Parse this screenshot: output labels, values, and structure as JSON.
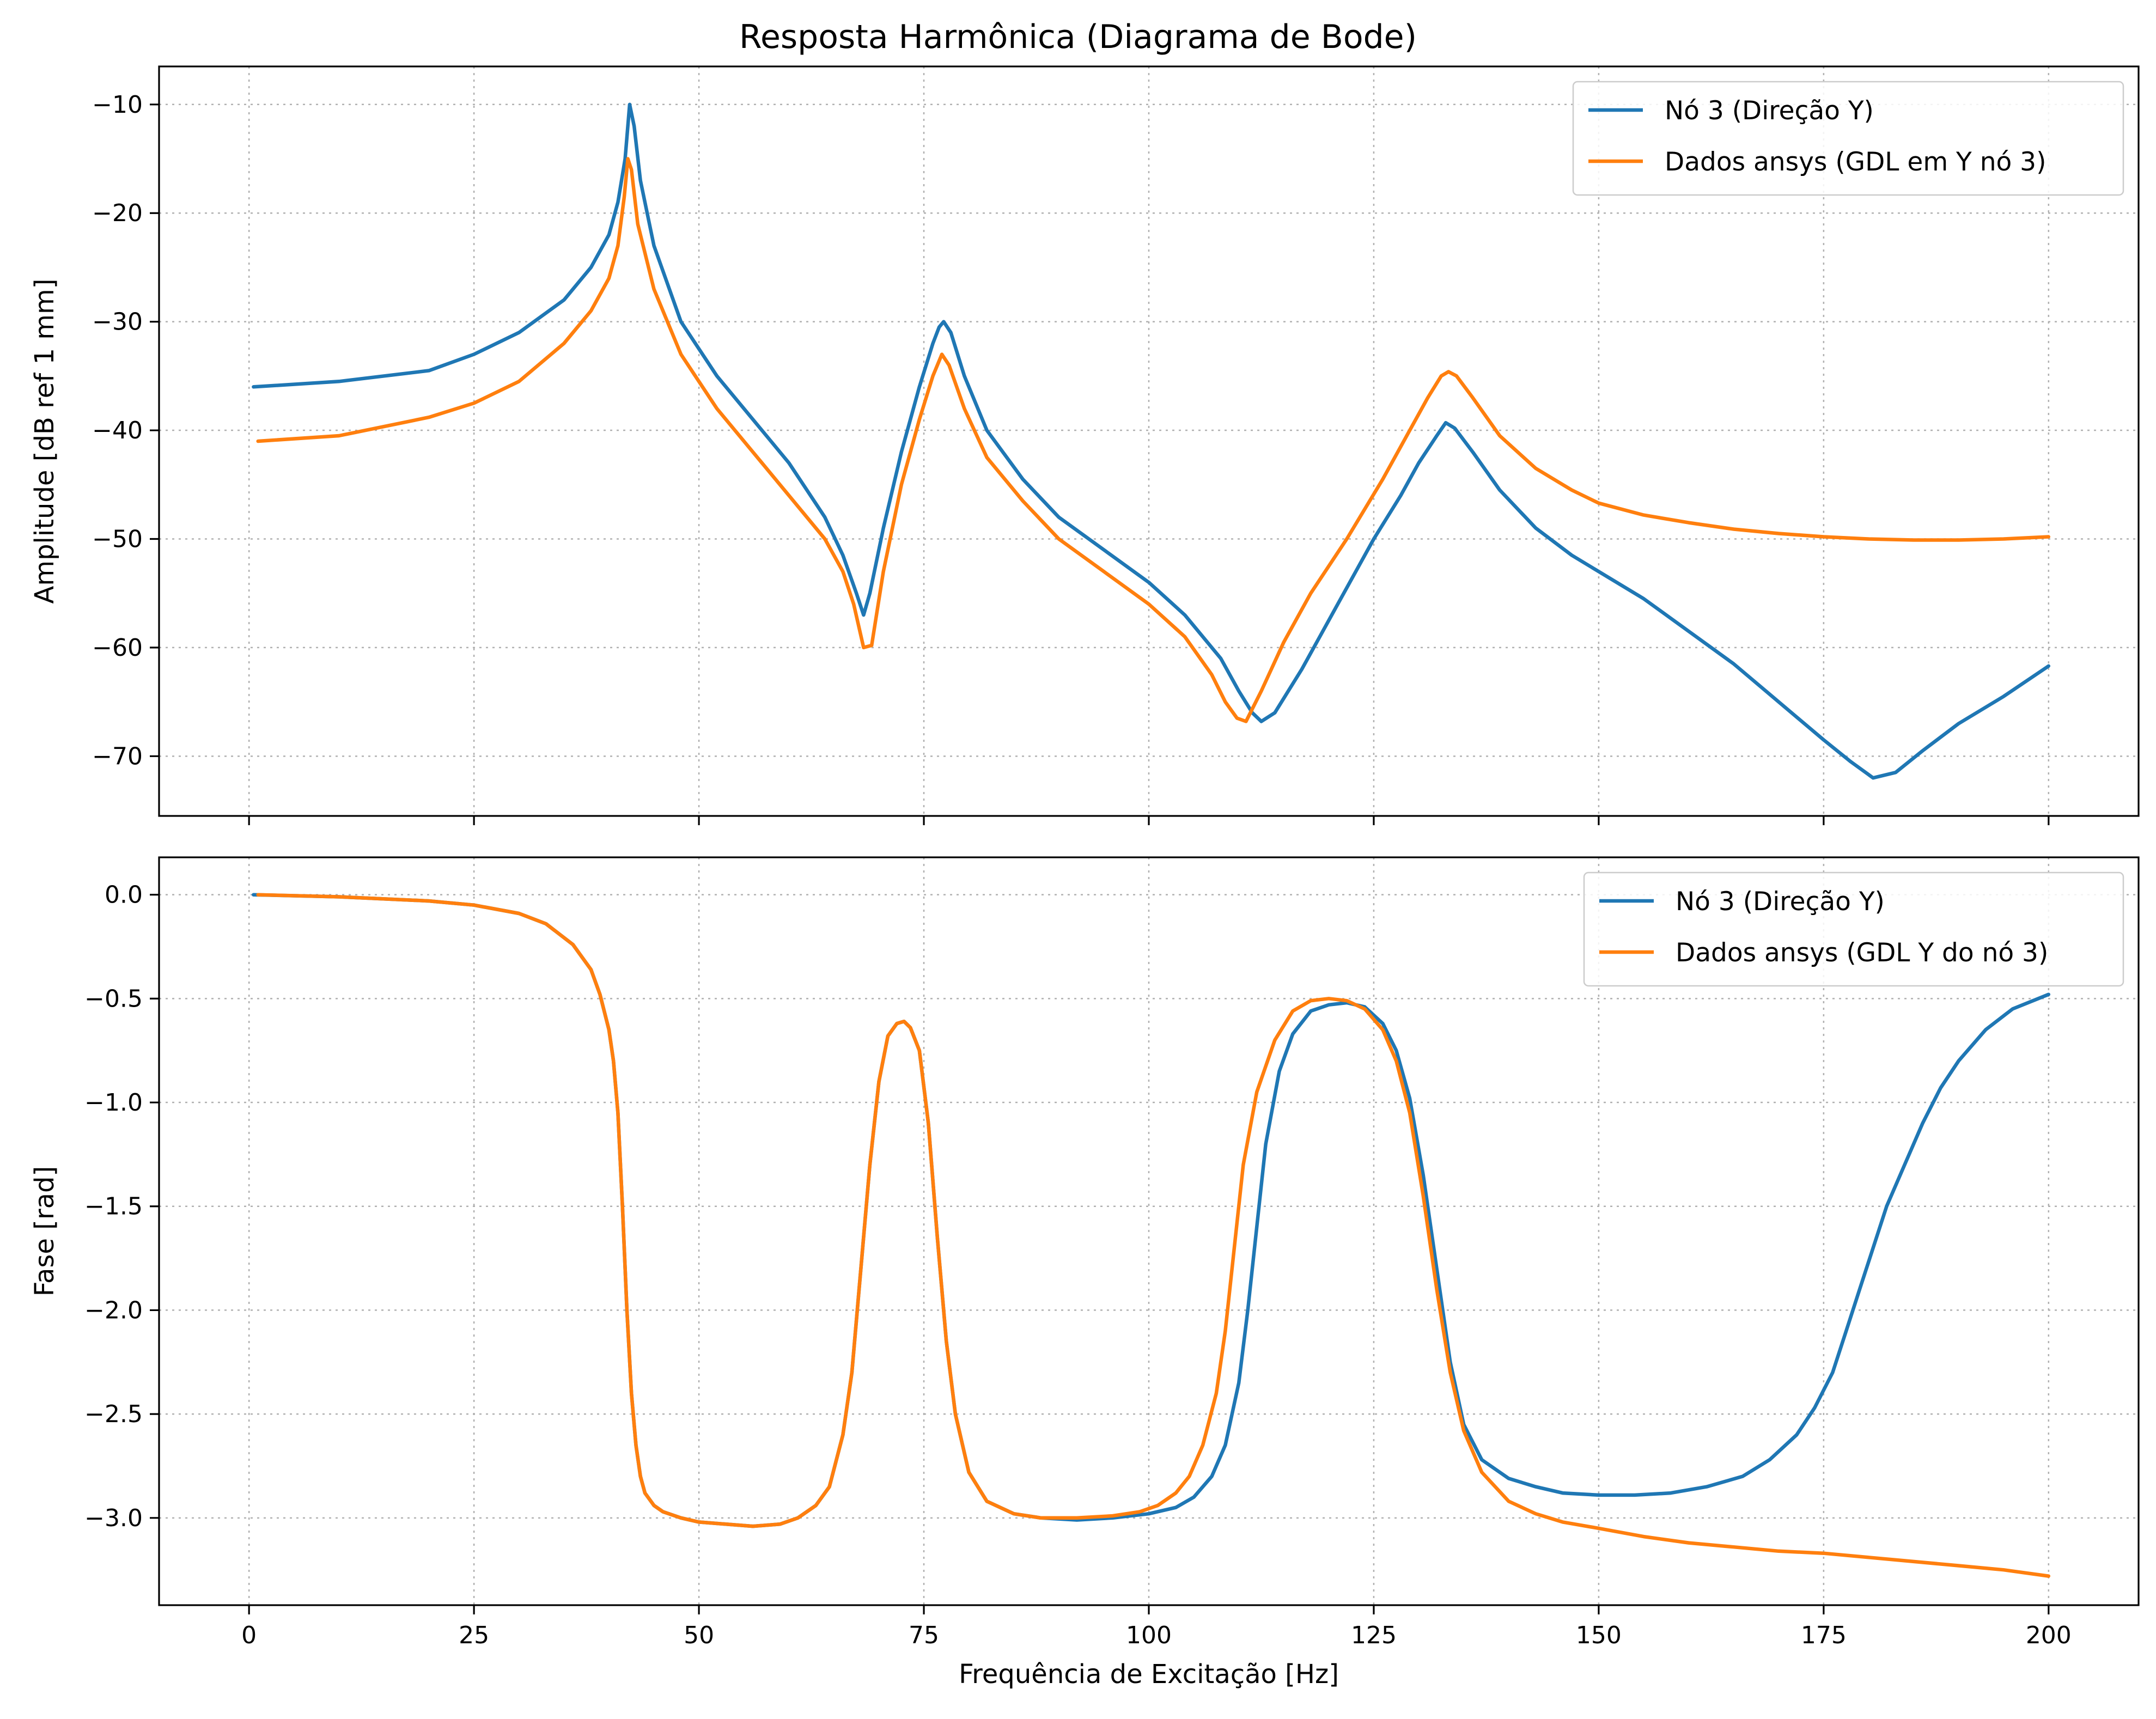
{
  "figure": {
    "title": "Resposta Harmônica (Diagrama de Bode)"
  },
  "colors": {
    "series_1": "#1f77b4",
    "series_2": "#ff7f0e",
    "grid": "#b0b0b0"
  },
  "chart_data": [
    {
      "type": "line",
      "name": "amplitude",
      "title": "",
      "xlabel": "",
      "ylabel": "Amplitude [dB ref 1 mm]",
      "xlim": [
        -10,
        210
      ],
      "ylim": [
        -75.5,
        -6.5
      ],
      "xticks": [
        0,
        25,
        50,
        75,
        100,
        125,
        150,
        175,
        200
      ],
      "xtick_labels": [
        "",
        "",
        "",
        "",
        "",
        "",
        "",
        "",
        ""
      ],
      "yticks": [
        -10,
        -20,
        -30,
        -40,
        -50,
        -60,
        -70
      ],
      "ytick_labels": [
        "−10",
        "−20",
        "−30",
        "−40",
        "−50",
        "−60",
        "−70"
      ],
      "grid": true,
      "legend_position": "top-right",
      "series": [
        {
          "name": "Nó 3 (Direção Y)",
          "color": "#1f77b4",
          "x": [
            0.5,
            10,
            20,
            25,
            30,
            35,
            38,
            40,
            41,
            41.8,
            42.3,
            42.8,
            43.5,
            45,
            48,
            52,
            56,
            60,
            64,
            66,
            67.5,
            68.3,
            69,
            70.5,
            72.5,
            74.5,
            76,
            76.7,
            77.2,
            78,
            79.5,
            82,
            86,
            90,
            95,
            100,
            104,
            108,
            110,
            111.5,
            112.5,
            114,
            117,
            121,
            125,
            128,
            130,
            132,
            133,
            134,
            136,
            139,
            143,
            147,
            150,
            155,
            160,
            165,
            170,
            175,
            178,
            180.5,
            183,
            186,
            190,
            195,
            200
          ],
          "y": [
            -36,
            -35.5,
            -34.5,
            -33,
            -31,
            -28,
            -25,
            -22,
            -19,
            -15,
            -10,
            -12,
            -17,
            -23,
            -30,
            -35,
            -39,
            -43,
            -48,
            -51.5,
            -55,
            -57,
            -55,
            -49,
            -42,
            -36,
            -32,
            -30.5,
            -30,
            -31,
            -35,
            -40,
            -44.5,
            -48,
            -51,
            -54,
            -57,
            -61,
            -64,
            -66,
            -66.8,
            -66,
            -62,
            -56,
            -50,
            -46,
            -43,
            -40.5,
            -39.3,
            -39.8,
            -42,
            -45.5,
            -49,
            -51.5,
            -53,
            -55.5,
            -58.5,
            -61.5,
            -65,
            -68.5,
            -70.5,
            -72,
            -71.5,
            -69.5,
            -67,
            -64.5,
            -61.7
          ]
        },
        {
          "name": "Dados ansys (GDL em Y nó 3)",
          "color": "#ff7f0e",
          "x": [
            1,
            10,
            20,
            25,
            30,
            35,
            38,
            40,
            41,
            41.7,
            42.1,
            42.5,
            43.2,
            45,
            48,
            52,
            56,
            60,
            64,
            66,
            67.2,
            68.3,
            69.2,
            70.5,
            72.5,
            74.5,
            76,
            77,
            77.8,
            79.5,
            82,
            86,
            90,
            95,
            100,
            104,
            107,
            108.5,
            109.8,
            110.8,
            112.5,
            115,
            118,
            122,
            126,
            129,
            131,
            132.5,
            133.3,
            134.2,
            136,
            139,
            143,
            147,
            150,
            155,
            160,
            165,
            170,
            175,
            180,
            185,
            190,
            195,
            200
          ],
          "y": [
            -41,
            -40.5,
            -38.8,
            -37.5,
            -35.5,
            -32,
            -29,
            -26,
            -23,
            -18.5,
            -15,
            -16,
            -21,
            -27,
            -33,
            -38,
            -42,
            -46,
            -50,
            -53,
            -56,
            -60,
            -59.8,
            -53,
            -45,
            -39,
            -35,
            -33,
            -34,
            -38,
            -42.5,
            -46.5,
            -50,
            -53,
            -56,
            -59,
            -62.5,
            -65,
            -66.5,
            -66.8,
            -64,
            -59.5,
            -55,
            -50,
            -44.5,
            -40,
            -37,
            -35,
            -34.6,
            -35,
            -37,
            -40.5,
            -43.5,
            -45.5,
            -46.7,
            -47.8,
            -48.5,
            -49.1,
            -49.5,
            -49.8,
            -50,
            -50.1,
            -50.1,
            -50,
            -49.8
          ]
        }
      ]
    },
    {
      "type": "line",
      "name": "fase",
      "title": "",
      "xlabel": "Frequência de Excitação [Hz]",
      "ylabel": "Fase [rad]",
      "xlim": [
        -10,
        210
      ],
      "ylim": [
        -3.42,
        0.18
      ],
      "xticks": [
        0,
        25,
        50,
        75,
        100,
        125,
        150,
        175,
        200
      ],
      "xtick_labels": [
        "0",
        "25",
        "50",
        "75",
        "100",
        "125",
        "150",
        "175",
        "200"
      ],
      "yticks": [
        0.0,
        -0.5,
        -1.0,
        -1.5,
        -2.0,
        -2.5,
        -3.0
      ],
      "ytick_labels": [
        "0.0",
        "−0.5",
        "−1.0",
        "−1.5",
        "−2.0",
        "−2.5",
        "−3.0"
      ],
      "grid": true,
      "legend_position": "top-right",
      "series": [
        {
          "name": "Nó 3 (Direção Y)",
          "color": "#1f77b4",
          "x": [
            0.5,
            10,
            20,
            25,
            30,
            33,
            36,
            38,
            39,
            40,
            40.5,
            41,
            41.5,
            42,
            42.5,
            43,
            43.5,
            44,
            45,
            46,
            48,
            50,
            53,
            56,
            59,
            61,
            63,
            64.5,
            66,
            67,
            68,
            69,
            70,
            71,
            72,
            72.8,
            73.5,
            74.5,
            75.5,
            76.5,
            77.5,
            78.5,
            80,
            82,
            85,
            88,
            92,
            96,
            100,
            103,
            105,
            107,
            108.5,
            110,
            111,
            112,
            113,
            114.5,
            116,
            118,
            120,
            122,
            124,
            126,
            127.5,
            129,
            130.5,
            132,
            133.5,
            135,
            137,
            140,
            143,
            146,
            150,
            154,
            158,
            162,
            166,
            169,
            172,
            174,
            176,
            177.5,
            179,
            180.5,
            182,
            184,
            186,
            188,
            190,
            193,
            196,
            200
          ],
          "y": [
            0,
            -0.01,
            -0.03,
            -0.05,
            -0.09,
            -0.14,
            -0.24,
            -0.36,
            -0.48,
            -0.65,
            -0.8,
            -1.05,
            -1.5,
            -2.0,
            -2.4,
            -2.65,
            -2.8,
            -2.88,
            -2.94,
            -2.97,
            -3.0,
            -3.02,
            -3.03,
            -3.04,
            -3.03,
            -3.0,
            -2.94,
            -2.85,
            -2.6,
            -2.3,
            -1.8,
            -1.3,
            -0.9,
            -0.68,
            -0.62,
            -0.61,
            -0.64,
            -0.75,
            -1.1,
            -1.65,
            -2.15,
            -2.5,
            -2.78,
            -2.92,
            -2.98,
            -3.0,
            -3.01,
            -3.0,
            -2.98,
            -2.95,
            -2.9,
            -2.8,
            -2.65,
            -2.35,
            -2.0,
            -1.6,
            -1.2,
            -0.85,
            -0.67,
            -0.56,
            -0.53,
            -0.52,
            -0.54,
            -0.62,
            -0.75,
            -0.98,
            -1.35,
            -1.8,
            -2.25,
            -2.55,
            -2.72,
            -2.81,
            -2.85,
            -2.88,
            -2.89,
            -2.89,
            -2.88,
            -2.85,
            -2.8,
            -2.72,
            -2.6,
            -2.47,
            -2.3,
            -2.1,
            -1.9,
            -1.7,
            -1.5,
            -1.3,
            -1.1,
            -0.93,
            -0.8,
            -0.65,
            -0.55,
            -0.48
          ]
        },
        {
          "name": "Dados ansys (GDL Y do nó 3)",
          "color": "#ff7f0e",
          "x": [
            1,
            10,
            20,
            25,
            30,
            33,
            36,
            38,
            39,
            40,
            40.5,
            41,
            41.5,
            42,
            42.5,
            43,
            43.5,
            44,
            45,
            46,
            48,
            50,
            53,
            56,
            59,
            61,
            63,
            64.5,
            66,
            67,
            68,
            69,
            70,
            71,
            72,
            72.8,
            73.5,
            74.5,
            75.5,
            76.5,
            77.5,
            78.5,
            80,
            82,
            85,
            88,
            92,
            96,
            99,
            101,
            103,
            104.5,
            106,
            107.5,
            108.5,
            109.5,
            110.5,
            112,
            114,
            116,
            118,
            120,
            122,
            124,
            126,
            127.5,
            129,
            130.5,
            132,
            133.5,
            135,
            137,
            140,
            143,
            146,
            150,
            155,
            160,
            165,
            170,
            175,
            180,
            185,
            190,
            195,
            200
          ],
          "y": [
            0,
            -0.01,
            -0.03,
            -0.05,
            -0.09,
            -0.14,
            -0.24,
            -0.36,
            -0.48,
            -0.65,
            -0.8,
            -1.05,
            -1.5,
            -2.0,
            -2.4,
            -2.65,
            -2.8,
            -2.88,
            -2.94,
            -2.97,
            -3.0,
            -3.02,
            -3.03,
            -3.04,
            -3.03,
            -3.0,
            -2.94,
            -2.85,
            -2.6,
            -2.3,
            -1.8,
            -1.3,
            -0.9,
            -0.68,
            -0.62,
            -0.61,
            -0.64,
            -0.75,
            -1.1,
            -1.65,
            -2.15,
            -2.5,
            -2.78,
            -2.92,
            -2.98,
            -3.0,
            -3.0,
            -2.99,
            -2.97,
            -2.94,
            -2.88,
            -2.8,
            -2.65,
            -2.4,
            -2.1,
            -1.7,
            -1.3,
            -0.95,
            -0.7,
            -0.56,
            -0.51,
            -0.5,
            -0.51,
            -0.55,
            -0.65,
            -0.8,
            -1.05,
            -1.45,
            -1.9,
            -2.3,
            -2.58,
            -2.78,
            -2.92,
            -2.98,
            -3.02,
            -3.05,
            -3.09,
            -3.12,
            -3.14,
            -3.16,
            -3.17,
            -3.19,
            -3.21,
            -3.23,
            -3.25,
            -3.28
          ]
        }
      ]
    }
  ]
}
